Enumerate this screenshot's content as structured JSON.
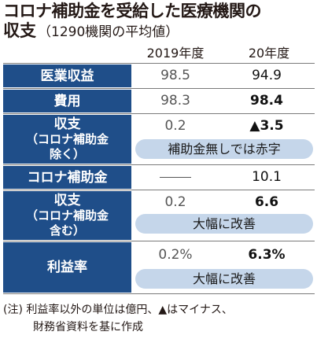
{
  "title": "コロナ補助金を受給した医療機関の",
  "subtitle_main": "収支",
  "subtitle_note": "（1290機関の平均値）",
  "columns": [
    "2019年度",
    "20年度"
  ],
  "rows": {
    "revenue": {
      "label": "医業収益",
      "y2019": "98.5",
      "y2020": "94.9"
    },
    "expenses": {
      "label": "費用",
      "y2019": "98.3",
      "y2020": "98.4"
    },
    "balance_excl": {
      "label_line1": "収支",
      "label_line2": "（コロナ補助金",
      "label_line3": "除く）",
      "y2019": "0.2",
      "y2020": "▲3.5",
      "note": "補助金無しでは赤字"
    },
    "subsidy": {
      "label": "コロナ補助金",
      "y2019": "",
      "y2020": "10.1"
    },
    "balance_incl": {
      "label_line1": "収支",
      "label_line2": "（コロナ補助金",
      "label_line3": "含む）",
      "y2019": "0.2",
      "y2020": "6.6",
      "note": "大幅に改善"
    },
    "margin": {
      "label": "利益率",
      "y2019": "0.2%",
      "y2020": "6.3%",
      "note": "大幅に改善"
    }
  },
  "footnote_line1": "(注) 利益率以外の単位は億円、▲はマイナス、",
  "footnote_line2": "財務省資料を基に作成",
  "colors": {
    "label_bg": "#1f4e89",
    "pill_bg": "#c5d6ea"
  }
}
